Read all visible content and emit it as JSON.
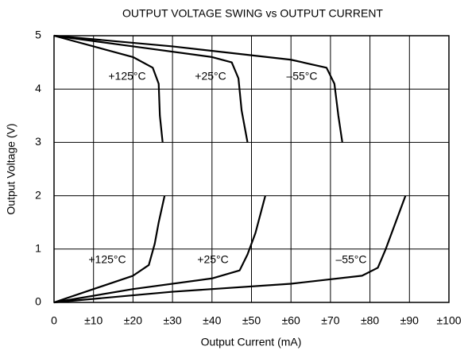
{
  "chart_data": {
    "type": "line",
    "title": "OUTPUT VOLTAGE SWING vs OUTPUT CURRENT",
    "x_label": "Output Current (mA)",
    "y_label": "Output Voltage (V)",
    "xlim": [
      0,
      100
    ],
    "ylim": [
      0,
      5
    ],
    "xticks": [
      0,
      {
        "value": 10,
        "label": "±10"
      },
      {
        "value": 20,
        "label": "±20"
      },
      {
        "value": 30,
        "label": "±30"
      },
      {
        "value": 40,
        "label": "±40"
      },
      {
        "value": 50,
        "label": "±50"
      },
      {
        "value": 60,
        "label": "±60"
      },
      {
        "value": 70,
        "label": "±70"
      },
      {
        "value": 80,
        "label": "±80"
      },
      {
        "value": 90,
        "label": "±90"
      },
      {
        "value": 100,
        "label": "±100"
      }
    ],
    "yticks": [
      0,
      1,
      2,
      3,
      4,
      5
    ],
    "grid": true,
    "series": [
      {
        "name": "+125°C",
        "color": "#000000",
        "x": [
          0,
          10,
          20,
          25,
          26.5,
          26.8,
          27.5
        ],
        "values": [
          5,
          4.8,
          4.6,
          4.4,
          4.1,
          3.5,
          3.0
        ]
      },
      {
        "name": "+25°C",
        "color": "#000000",
        "x": [
          0,
          20,
          40,
          45,
          46.7,
          47.5,
          49
        ],
        "values": [
          5,
          4.8,
          4.6,
          4.5,
          4.2,
          3.6,
          3.0
        ]
      },
      {
        "name": "–55°C",
        "color": "#000000",
        "x": [
          0,
          30,
          60,
          69,
          71,
          72,
          73
        ],
        "values": [
          5,
          4.8,
          4.55,
          4.4,
          4.1,
          3.5,
          3.0
        ]
      },
      {
        "name": "+125°C",
        "color": "#000000",
        "x": [
          0,
          10,
          20,
          24,
          25.5,
          26.5,
          28
        ],
        "values": [
          0,
          0.25,
          0.5,
          0.7,
          1.1,
          1.5,
          2.0
        ]
      },
      {
        "name": "+25°C",
        "color": "#000000",
        "x": [
          0,
          20,
          40,
          47,
          49,
          51,
          53.5
        ],
        "values": [
          0,
          0.25,
          0.45,
          0.6,
          0.9,
          1.3,
          2.0
        ]
      },
      {
        "name": "–55°C",
        "color": "#000000",
        "x": [
          0,
          30,
          60,
          78,
          82,
          84,
          86,
          89
        ],
        "values": [
          0,
          0.2,
          0.35,
          0.5,
          0.65,
          1.0,
          1.4,
          2.0
        ]
      }
    ]
  }
}
